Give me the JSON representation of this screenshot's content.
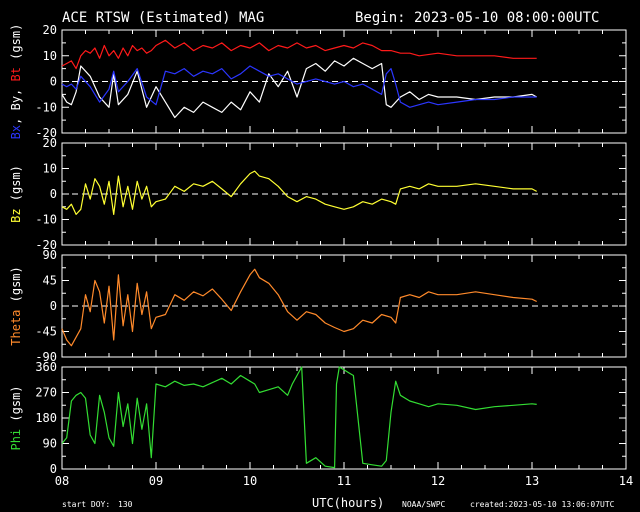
{
  "title": "ACE RTSW (Estimated) MAG",
  "begin": "Begin: 2023-05-10 08:00:00UTC",
  "footer": {
    "start_doy_label": "start DOY:",
    "start_doy_value": "130",
    "xlabel": "UTC(hours)",
    "source": "NOAA/SWPC",
    "created": "created:2023-05-10 13:06:07UTC"
  },
  "colors": {
    "bx": "#2b36ff",
    "by": "#ffffff",
    "bt": "#ff1a1a",
    "bz": "#ffff33",
    "theta": "#ff8a2b",
    "phi": "#33dd33",
    "axes": "#ffffff"
  },
  "chart_data": [
    {
      "type": "line",
      "ylabel_parts": [
        {
          "text": "Bx",
          "color": "#2b36ff"
        },
        {
          "text": ", By, ",
          "color": "#ffffff"
        },
        {
          "text": "Bt",
          "color": "#ff1a1a"
        },
        {
          "text": " (gsm)",
          "color": "#ffffff"
        }
      ],
      "ylim": [
        -20,
        20
      ],
      "yticks": [
        20,
        10,
        0,
        -10,
        -20
      ],
      "xlim": [
        8,
        14
      ],
      "zero_line": 0,
      "series": [
        {
          "name": "Bt",
          "color": "#ff1a1a",
          "x": [
            8.0,
            8.05,
            8.1,
            8.15,
            8.2,
            8.25,
            8.3,
            8.35,
            8.4,
            8.45,
            8.5,
            8.55,
            8.6,
            8.65,
            8.7,
            8.75,
            8.8,
            8.85,
            8.9,
            8.95,
            9.0,
            9.1,
            9.2,
            9.3,
            9.4,
            9.5,
            9.6,
            9.7,
            9.8,
            9.9,
            10.0,
            10.1,
            10.2,
            10.3,
            10.4,
            10.5,
            10.6,
            10.7,
            10.8,
            10.9,
            11.0,
            11.1,
            11.2,
            11.3,
            11.4,
            11.5,
            11.6,
            11.7,
            11.8,
            12.0,
            12.2,
            12.4,
            12.6,
            12.8,
            13.0,
            13.05
          ],
          "y": [
            6,
            7,
            8,
            5,
            10,
            12,
            11,
            13,
            9,
            14,
            10,
            12,
            9,
            13,
            10,
            14,
            12,
            13,
            11,
            12,
            14,
            16,
            13,
            15,
            12,
            14,
            13,
            15,
            12,
            14,
            13,
            15,
            12,
            14,
            13,
            15,
            13,
            14,
            12,
            13,
            14,
            13,
            15,
            14,
            12,
            12,
            11,
            11,
            10,
            11,
            10,
            10,
            10,
            9,
            9,
            9
          ]
        },
        {
          "name": "By",
          "color": "#ffffff",
          "x": [
            8.0,
            8.05,
            8.1,
            8.15,
            8.2,
            8.3,
            8.4,
            8.5,
            8.55,
            8.6,
            8.7,
            8.8,
            8.9,
            9.0,
            9.1,
            9.2,
            9.3,
            9.4,
            9.5,
            9.6,
            9.7,
            9.8,
            9.9,
            10.0,
            10.1,
            10.2,
            10.3,
            10.4,
            10.5,
            10.6,
            10.7,
            10.8,
            10.9,
            11.0,
            11.1,
            11.2,
            11.3,
            11.4,
            11.45,
            11.5,
            11.55,
            11.6,
            11.7,
            11.8,
            11.9,
            12.0,
            12.2,
            12.4,
            12.6,
            12.8,
            13.0,
            13.05
          ],
          "y": [
            -5,
            -8,
            -9,
            -4,
            6,
            2,
            -6,
            -10,
            3,
            -9,
            -5,
            4,
            -10,
            -2,
            -8,
            -14,
            -10,
            -12,
            -8,
            -10,
            -12,
            -8,
            -11,
            -4,
            -8,
            3,
            -2,
            4,
            -6,
            5,
            7,
            4,
            8,
            6,
            9,
            7,
            5,
            7,
            -9,
            -10,
            -8,
            -6,
            -4,
            -7,
            -5,
            -6,
            -6,
            -7,
            -6,
            -6,
            -5,
            -6
          ]
        },
        {
          "name": "Bx",
          "color": "#2b36ff",
          "x": [
            8.0,
            8.05,
            8.1,
            8.15,
            8.2,
            8.3,
            8.4,
            8.5,
            8.55,
            8.6,
            8.7,
            8.8,
            8.9,
            9.0,
            9.1,
            9.2,
            9.3,
            9.4,
            9.5,
            9.6,
            9.7,
            9.8,
            9.9,
            10.0,
            10.1,
            10.2,
            10.3,
            10.4,
            10.5,
            10.6,
            10.7,
            10.8,
            10.9,
            11.0,
            11.1,
            11.2,
            11.3,
            11.4,
            11.45,
            11.5,
            11.55,
            11.6,
            11.7,
            11.8,
            11.9,
            12.0,
            12.2,
            12.4,
            12.6,
            12.8,
            13.0,
            13.05
          ],
          "y": [
            -1,
            -2,
            -1,
            -3,
            2,
            -2,
            -8,
            -3,
            4,
            -4,
            0,
            5,
            -6,
            -9,
            4,
            3,
            5,
            2,
            4,
            3,
            5,
            1,
            3,
            6,
            4,
            2,
            3,
            1,
            -1,
            0,
            1,
            0,
            -1,
            0,
            -2,
            -1,
            -3,
            -5,
            3,
            5,
            -1,
            -8,
            -10,
            -9,
            -8,
            -9,
            -8,
            -7,
            -7,
            -6,
            -6,
            -6
          ]
        }
      ]
    },
    {
      "type": "line",
      "ylabel_parts": [
        {
          "text": "Bz",
          "color": "#ffff33"
        },
        {
          "text": " (gsm)",
          "color": "#ffffff"
        }
      ],
      "ylim": [
        -20,
        20
      ],
      "yticks": [
        20,
        10,
        0,
        -10,
        -20
      ],
      "xlim": [
        8,
        14
      ],
      "zero_line": 0,
      "series": [
        {
          "name": "Bz",
          "color": "#ffff33",
          "x": [
            8.0,
            8.05,
            8.1,
            8.15,
            8.2,
            8.25,
            8.3,
            8.35,
            8.4,
            8.45,
            8.5,
            8.55,
            8.6,
            8.65,
            8.7,
            8.75,
            8.8,
            8.85,
            8.9,
            8.95,
            9.0,
            9.1,
            9.2,
            9.3,
            9.4,
            9.5,
            9.6,
            9.7,
            9.8,
            9.9,
            10.0,
            10.05,
            10.1,
            10.2,
            10.3,
            10.4,
            10.5,
            10.6,
            10.7,
            10.8,
            10.9,
            11.0,
            11.1,
            11.2,
            11.3,
            11.4,
            11.5,
            11.55,
            11.6,
            11.7,
            11.8,
            11.9,
            12.0,
            12.2,
            12.4,
            12.6,
            12.8,
            13.0,
            13.05
          ],
          "y": [
            -5,
            -6,
            -4,
            -8,
            -6,
            4,
            -2,
            6,
            3,
            -4,
            5,
            -8,
            7,
            -5,
            3,
            -6,
            5,
            -2,
            3,
            -5,
            -3,
            -2,
            3,
            1,
            4,
            3,
            5,
            2,
            -1,
            4,
            8,
            9,
            7,
            6,
            3,
            -1,
            -3,
            -1,
            -2,
            -4,
            -5,
            -6,
            -5,
            -3,
            -4,
            -2,
            -3,
            -4,
            2,
            3,
            2,
            4,
            3,
            3,
            4,
            3,
            2,
            2,
            1
          ]
        }
      ]
    },
    {
      "type": "line",
      "ylabel_parts": [
        {
          "text": "Theta",
          "color": "#ff8a2b"
        },
        {
          "text": " (gsm)",
          "color": "#ffffff"
        }
      ],
      "ylim": [
        -90,
        90
      ],
      "yticks": [
        90,
        45,
        0,
        -45,
        -90
      ],
      "xlim": [
        8,
        14
      ],
      "zero_line": 0,
      "series": [
        {
          "name": "Theta",
          "color": "#ff8a2b",
          "x": [
            8.0,
            8.05,
            8.1,
            8.15,
            8.2,
            8.25,
            8.3,
            8.35,
            8.4,
            8.45,
            8.5,
            8.55,
            8.6,
            8.65,
            8.7,
            8.75,
            8.8,
            8.85,
            8.9,
            8.95,
            9.0,
            9.1,
            9.2,
            9.3,
            9.4,
            9.5,
            9.6,
            9.7,
            9.8,
            9.9,
            10.0,
            10.05,
            10.1,
            10.2,
            10.3,
            10.4,
            10.5,
            10.6,
            10.7,
            10.8,
            10.9,
            11.0,
            11.1,
            11.2,
            11.3,
            11.4,
            11.5,
            11.55,
            11.6,
            11.7,
            11.8,
            11.9,
            12.0,
            12.2,
            12.4,
            12.6,
            12.8,
            13.0,
            13.05
          ],
          "y": [
            -40,
            -60,
            -70,
            -55,
            -40,
            20,
            -10,
            45,
            25,
            -30,
            35,
            -60,
            55,
            -35,
            20,
            -45,
            40,
            -15,
            25,
            -40,
            -20,
            -15,
            20,
            10,
            25,
            18,
            30,
            12,
            -8,
            25,
            55,
            65,
            50,
            40,
            20,
            -10,
            -25,
            -10,
            -15,
            -30,
            -38,
            -45,
            -40,
            -25,
            -30,
            -15,
            -20,
            -30,
            15,
            20,
            15,
            25,
            20,
            20,
            25,
            20,
            15,
            12,
            8
          ]
        }
      ]
    },
    {
      "type": "line",
      "ylabel_parts": [
        {
          "text": "Phi",
          "color": "#33dd33"
        },
        {
          "text": " (gsm)",
          "color": "#ffffff"
        }
      ],
      "ylim": [
        0,
        360
      ],
      "yticks": [
        360,
        270,
        180,
        90,
        0
      ],
      "xlim": [
        8,
        14
      ],
      "xticks": [
        8,
        9,
        10,
        11,
        12,
        13,
        14
      ],
      "xticklabels": [
        "08",
        "09",
        "10",
        "11",
        "12",
        "13",
        "14"
      ],
      "series": [
        {
          "name": "Phi",
          "color": "#33dd33",
          "x": [
            8.0,
            8.05,
            8.1,
            8.15,
            8.2,
            8.25,
            8.3,
            8.35,
            8.4,
            8.45,
            8.5,
            8.55,
            8.6,
            8.65,
            8.7,
            8.75,
            8.8,
            8.85,
            8.9,
            8.95,
            9.0,
            9.1,
            9.2,
            9.3,
            9.4,
            9.5,
            9.6,
            9.7,
            9.8,
            9.9,
            10.0,
            10.05,
            10.1,
            10.2,
            10.3,
            10.4,
            10.45,
            10.5,
            10.55,
            10.6,
            10.7,
            10.8,
            10.9,
            10.92,
            10.95,
            11.0,
            11.05,
            11.1,
            11.2,
            11.3,
            11.4,
            11.45,
            11.5,
            11.55,
            11.6,
            11.7,
            11.8,
            11.9,
            12.0,
            12.2,
            12.4,
            12.6,
            12.8,
            13.0,
            13.05
          ],
          "y": [
            90,
            110,
            240,
            260,
            270,
            250,
            120,
            90,
            260,
            200,
            110,
            80,
            270,
            150,
            230,
            90,
            250,
            140,
            230,
            40,
            300,
            290,
            310,
            295,
            300,
            290,
            305,
            320,
            300,
            330,
            310,
            300,
            270,
            280,
            290,
            260,
            300,
            330,
            360,
            20,
            40,
            10,
            5,
            300,
            360,
            350,
            340,
            330,
            20,
            15,
            10,
            30,
            200,
            310,
            260,
            240,
            230,
            220,
            230,
            225,
            210,
            220,
            225,
            230,
            228
          ]
        }
      ]
    }
  ]
}
